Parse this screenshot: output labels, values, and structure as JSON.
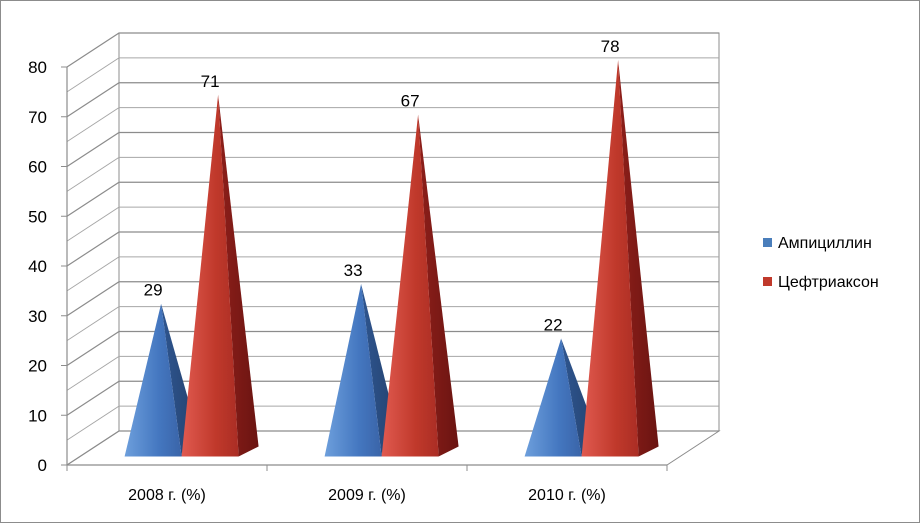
{
  "chart_data": {
    "type": "bar",
    "categories": [
      "2008 г. (%)",
      "2009 г. (%)",
      "2010 г. (%)"
    ],
    "series": [
      {
        "name": "Ампициллин",
        "values": [
          29,
          33,
          22
        ],
        "color": "#4a7ebb"
      },
      {
        "name": "Цефтриаксон",
        "values": [
          71,
          67,
          78
        ],
        "color": "#c0392b"
      }
    ],
    "ylim": [
      0,
      80
    ],
    "yticks": [
      0,
      10,
      20,
      30,
      40,
      50,
      60,
      70,
      80
    ],
    "grid": true,
    "legend_position": "right",
    "shape": "pyramid",
    "title": "",
    "xlabel": "",
    "ylabel": ""
  }
}
